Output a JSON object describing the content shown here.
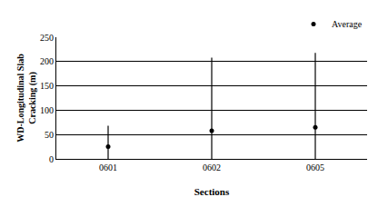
{
  "chart_data": {
    "type": "scatter",
    "categories": [
      "0601",
      "0602",
      "0605"
    ],
    "series": [
      {
        "name": "Average",
        "color": "#000000",
        "marker": "circle",
        "values": [
          25,
          58,
          65
        ],
        "min": [
          0,
          0,
          0
        ],
        "max": [
          68,
          208,
          218
        ]
      }
    ],
    "x_label": "Sections",
    "y_label": [
      "WD-Longitudinal Slab",
      "Cracking (m)"
    ],
    "ylim": [
      0,
      250
    ],
    "yticks": [
      0,
      50,
      100,
      150,
      200,
      250
    ],
    "grid": true,
    "legend": "top right"
  }
}
